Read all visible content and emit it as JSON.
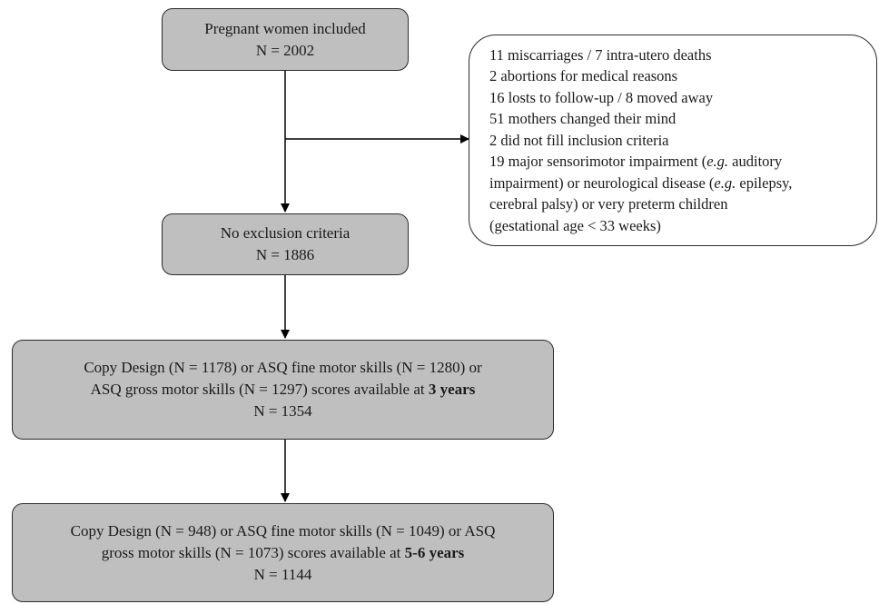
{
  "box1": {
    "line1": "Pregnant women included",
    "line2": "N = 2002"
  },
  "exclusions": {
    "l1": "11 miscarriages / 7 intra-utero deaths",
    "l2": "2 abortions for medical reasons",
    "l3": "16 losts to follow-up / 8 moved away",
    "l4": "51 mothers changed their mind",
    "l5": "2 did not fill inclusion criteria",
    "l6a": "19 major sensorimotor impairment (",
    "l6b": "e.g.",
    "l6c": " auditory",
    "l7a": "impairment) or neurological disease (",
    "l7b": "e.g.",
    "l7c": " epilepsy,",
    "l8": "cerebral palsy) or very preterm children",
    "l9": "(gestational age < 33 weeks)"
  },
  "box2": {
    "line1": "No exclusion criteria",
    "line2": "N = 1886"
  },
  "box3": {
    "line1": "Copy Design (N = 1178) or ASQ fine motor skills (N = 1280) or",
    "line2a": "ASQ gross motor skills (N = 1297) scores available at ",
    "line2b": "3 years",
    "line3": "N = 1354"
  },
  "box4": {
    "line1": "Copy Design (N = 948) or ASQ fine motor skills (N = 1049) or ASQ",
    "line2a": "gross motor skills (N = 1073) scores available at ",
    "line2b": "5-6 years",
    "line3": "N = 1144"
  },
  "colors": {
    "box_fill": "#bfbfbf",
    "border": "#2b2b2b",
    "arrow": "#000000"
  }
}
